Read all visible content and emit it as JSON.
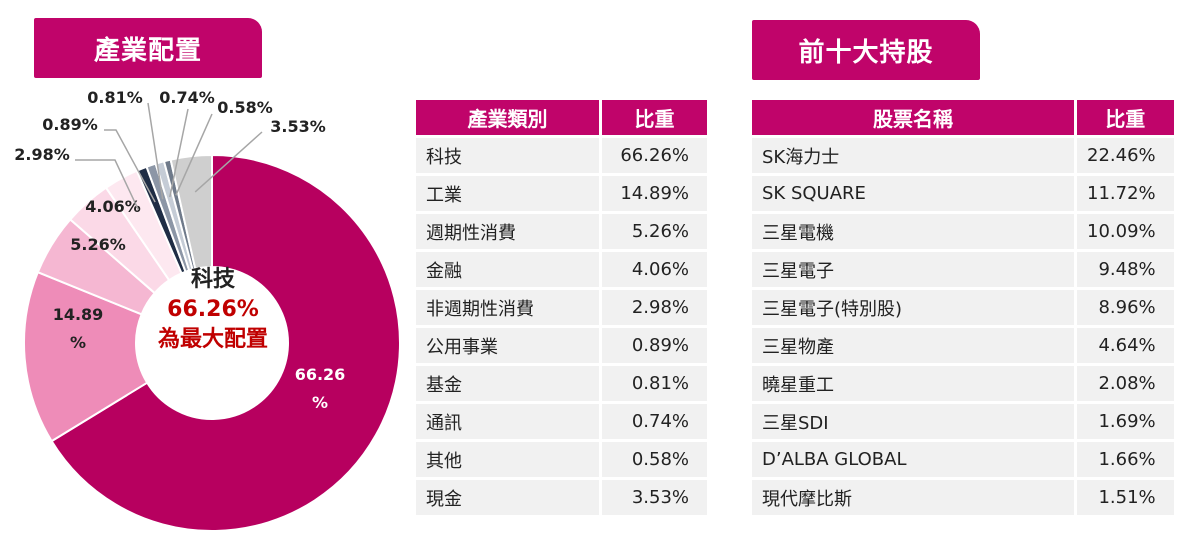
{
  "headers": {
    "industry": "產業配置",
    "holdings": "前十大持股"
  },
  "center_label": {
    "title": "科技",
    "percent": "66.26%",
    "subtitle": "為最大配置"
  },
  "colors": {
    "accent": "#c0046a",
    "highlight_text": "#c00000",
    "table_cell_bg": "#f1f1f1"
  },
  "chart_data": {
    "type": "pie",
    "donut": true,
    "categories": [
      "科技",
      "工業",
      "週期性消費",
      "金融",
      "非週期性消費",
      "公用事業",
      "基金",
      "通訊",
      "其他",
      "現金"
    ],
    "values": [
      66.26,
      14.89,
      5.26,
      4.06,
      2.98,
      0.89,
      0.81,
      0.74,
      0.58,
      3.53
    ],
    "labels": [
      "66.26\n%",
      "14.89\n%",
      "5.26%",
      "4.06%",
      "2.98%",
      "0.89%",
      "0.81%",
      "0.74%",
      "0.58%",
      "3.53%"
    ],
    "colors": [
      "#b7005f",
      "#ee8cb8",
      "#f5b7d2",
      "#fbd9e7",
      "#fde8f0",
      "#1f2d45",
      "#8c96a6",
      "#c5ccd6",
      "#6f7a8a",
      "#cfcfcf"
    ]
  },
  "industry_table": {
    "columns": [
      "產業類別",
      "比重"
    ],
    "rows": [
      [
        "科技",
        "66.26%"
      ],
      [
        "工業",
        "14.89%"
      ],
      [
        "週期性消費",
        "5.26%"
      ],
      [
        "金融",
        "4.06%"
      ],
      [
        "非週期性消費",
        "2.98%"
      ],
      [
        "公用事業",
        "0.89%"
      ],
      [
        "基金",
        "0.81%"
      ],
      [
        "通訊",
        "0.74%"
      ],
      [
        "其他",
        "0.58%"
      ],
      [
        "現金",
        "3.53%"
      ]
    ]
  },
  "holdings_table": {
    "columns": [
      "股票名稱",
      "比重"
    ],
    "rows": [
      [
        "SK海力士",
        "22.46%"
      ],
      [
        "SK SQUARE",
        "11.72%"
      ],
      [
        "三星電機",
        "10.09%"
      ],
      [
        "三星電子",
        "9.48%"
      ],
      [
        "三星電子(特別股)",
        "8.96%"
      ],
      [
        "三星物產",
        "4.64%"
      ],
      [
        "曉星重工",
        "2.08%"
      ],
      [
        "三星SDI",
        "1.69%"
      ],
      [
        "D’ALBA GLOBAL",
        "1.66%"
      ],
      [
        "現代摩比斯",
        "1.51%"
      ]
    ]
  }
}
